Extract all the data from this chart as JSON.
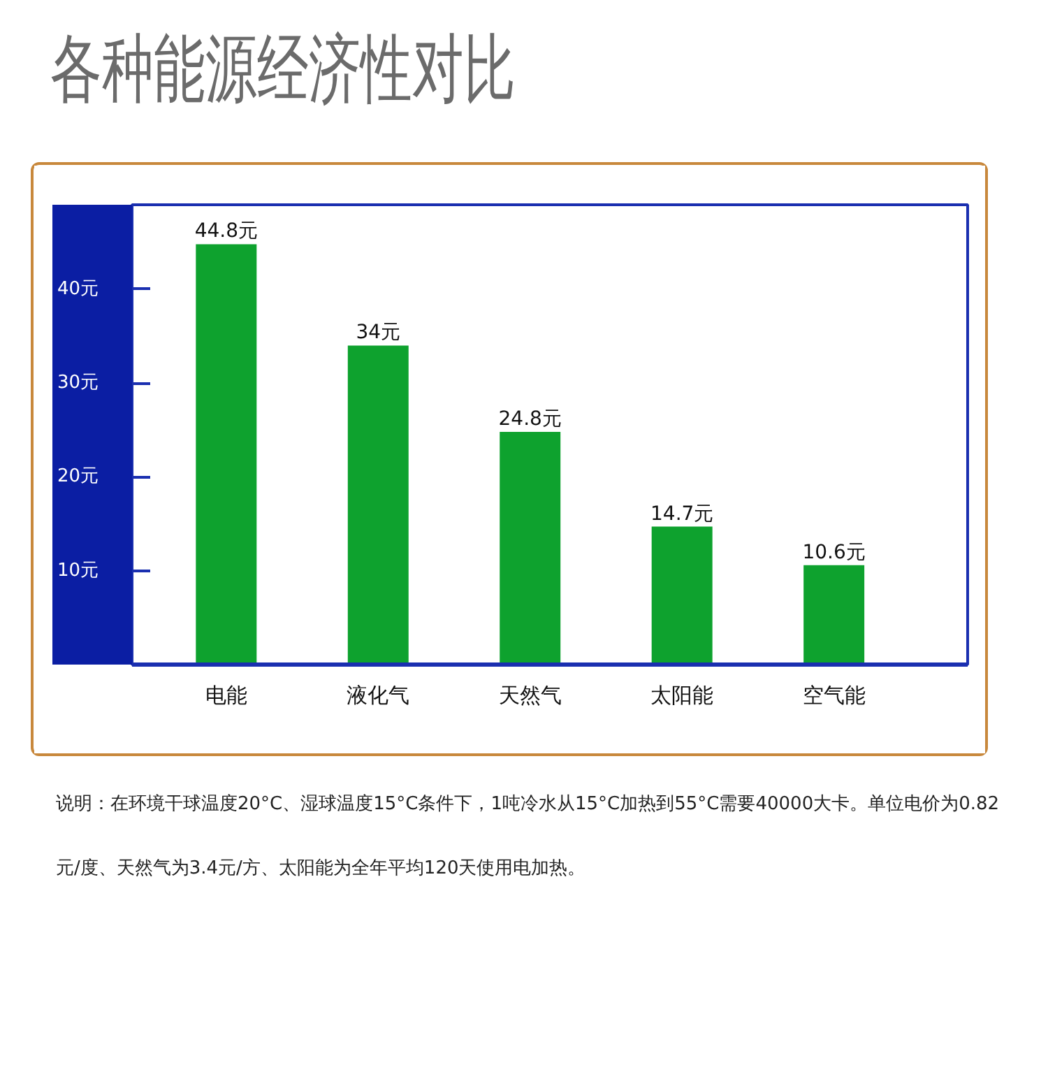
{
  "chart_data": {
    "type": "bar",
    "title": "各种能源经济性对比",
    "categories": [
      "电能",
      "液化气",
      "天然气",
      "太阳能",
      "空气能"
    ],
    "values": [
      44.8,
      34,
      24.8,
      14.7,
      10.6
    ],
    "value_labels": [
      "44.8元",
      "34元",
      "24.8元",
      "14.7元",
      "10.6元"
    ],
    "color": "#0ea22e",
    "ylim": [
      0,
      49
    ],
    "yticks": [
      {
        "value": 10,
        "label": "10元"
      },
      {
        "value": 20,
        "label": "20元"
      },
      {
        "value": 30,
        "label": "30元"
      },
      {
        "value": 40,
        "label": "40元"
      }
    ],
    "annotations": [
      "说明：在环境干球温度20°C、湿球温度15°C条件下，1吨冷水从15°C加热到55°C需要40000大卡。单位电价为0.82元/度、天然气为3.4元/方、太阳能为全年平均120天使用电加热。"
    ]
  }
}
